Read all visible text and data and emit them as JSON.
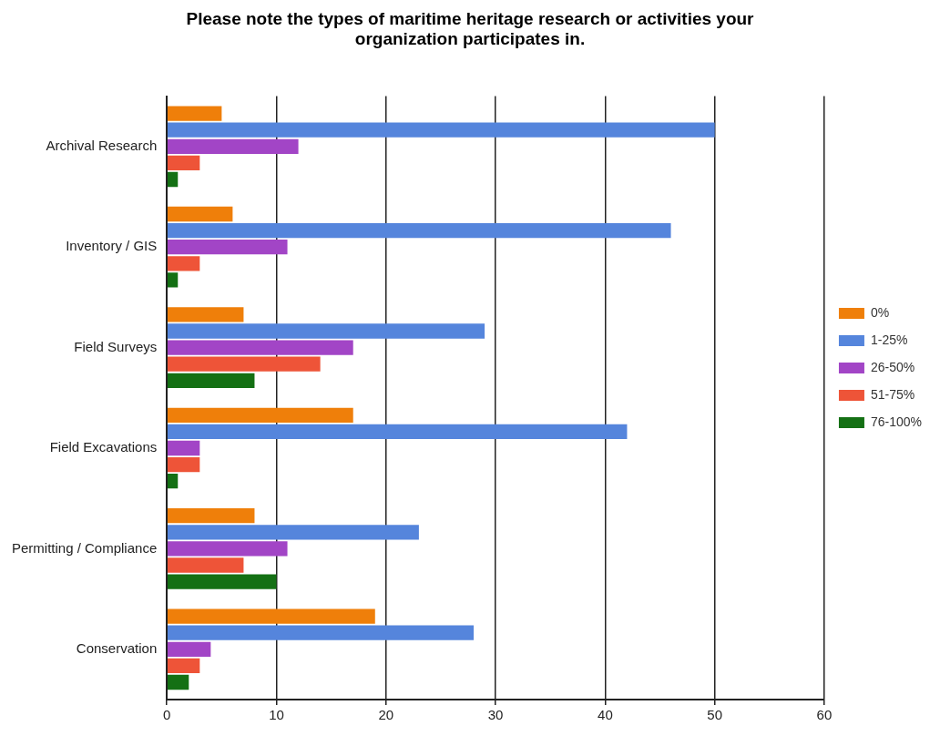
{
  "chart_data": {
    "type": "bar",
    "orientation": "horizontal",
    "title": "Please note the types of maritime heritage research or activities your\norganization participates in.",
    "categories": [
      "Archival Research",
      "Inventory / GIS",
      "Field Surveys",
      "Field Excavations",
      "Permitting / Compliance",
      "Conservation"
    ],
    "series": [
      {
        "name": "0%",
        "color": "#ef7f0a",
        "values": [
          5,
          6,
          7,
          17,
          8,
          19
        ]
      },
      {
        "name": "1-25%",
        "color": "#5585dc",
        "values": [
          50,
          46,
          29,
          42,
          23,
          28
        ]
      },
      {
        "name": "26-50%",
        "color": "#a245c6",
        "values": [
          12,
          11,
          17,
          3,
          11,
          4
        ]
      },
      {
        "name": "51-75%",
        "color": "#ee5438",
        "values": [
          3,
          3,
          14,
          3,
          7,
          3
        ]
      },
      {
        "name": "76-100%",
        "color": "#147014",
        "values": [
          1,
          1,
          8,
          1,
          10,
          2
        ]
      }
    ],
    "xlim": [
      0,
      60
    ],
    "xticks": [
      0,
      10,
      20,
      30,
      40,
      50,
      60
    ],
    "grid": "x",
    "legend": "right"
  }
}
